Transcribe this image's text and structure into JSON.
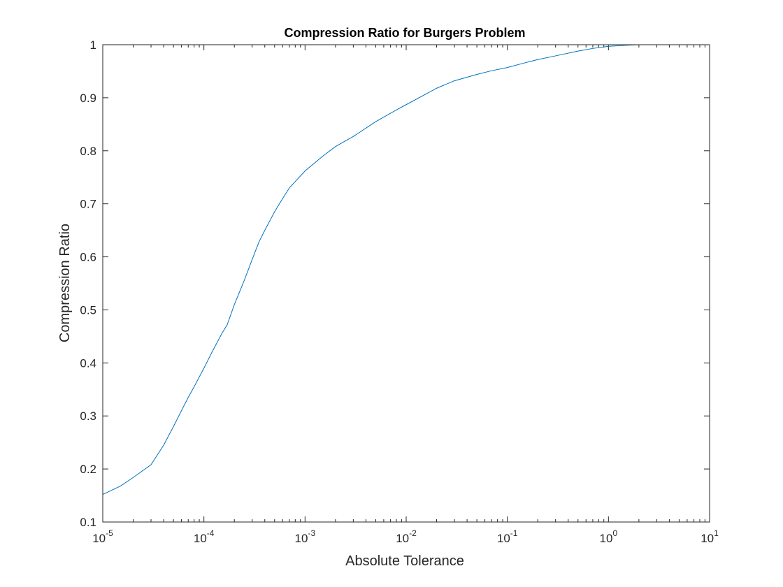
{
  "chart_data": {
    "type": "line",
    "title": "Compression Ratio for Burgers Problem",
    "xlabel": "Absolute Tolerance",
    "ylabel": "Compression Ratio",
    "xscale": "log",
    "xlim": [
      1e-05,
      10
    ],
    "ylim": [
      0.1,
      1
    ],
    "grid": false,
    "x_tick_labels": [
      {
        "base": "10",
        "exp": "-5"
      },
      {
        "base": "10",
        "exp": "-4"
      },
      {
        "base": "10",
        "exp": "-3"
      },
      {
        "base": "10",
        "exp": "-2"
      },
      {
        "base": "10",
        "exp": "-1"
      },
      {
        "base": "10",
        "exp": "0"
      },
      {
        "base": "10",
        "exp": "1"
      }
    ],
    "y_tick_labels": [
      "0.1",
      "0.2",
      "0.3",
      "0.4",
      "0.5",
      "0.6",
      "0.7",
      "0.8",
      "0.9",
      "1"
    ],
    "series": [
      {
        "color": "#0072bd",
        "x": [
          1e-05,
          1.5e-05,
          2e-05,
          3e-05,
          4e-05,
          5e-05,
          6e-05,
          7e-05,
          8e-05,
          0.0001,
          0.00012,
          0.00015,
          0.00017,
          0.0002,
          0.00025,
          0.0003,
          0.00035,
          0.0004,
          0.0005,
          0.0006,
          0.0007,
          0.001,
          0.0015,
          0.002,
          0.003,
          0.005,
          0.008,
          0.01,
          0.015,
          0.02,
          0.03,
          0.05,
          0.07,
          0.1,
          0.15,
          0.2,
          0.3,
          0.5,
          0.7,
          1,
          1.5,
          2,
          3,
          5,
          10
        ],
        "y": [
          0.152,
          0.168,
          0.184,
          0.208,
          0.245,
          0.28,
          0.31,
          0.335,
          0.355,
          0.39,
          0.42,
          0.455,
          0.472,
          0.51,
          0.555,
          0.595,
          0.628,
          0.65,
          0.685,
          0.71,
          0.73,
          0.762,
          0.79,
          0.808,
          0.827,
          0.855,
          0.877,
          0.887,
          0.905,
          0.918,
          0.932,
          0.944,
          0.951,
          0.957,
          0.966,
          0.972,
          0.979,
          0.988,
          0.993,
          0.997,
          0.999,
          1.0,
          1.0,
          1.0,
          1.0
        ]
      }
    ]
  }
}
